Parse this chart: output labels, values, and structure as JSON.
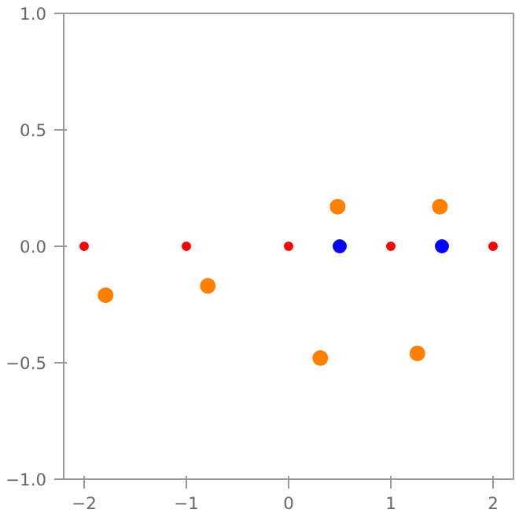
{
  "chart_data": {
    "type": "scatter",
    "marker": "circle",
    "grid": false,
    "xlim": [
      -2.2,
      2.2
    ],
    "ylim": [
      -1,
      1
    ],
    "xticks": [
      {
        "value": -2,
        "label": "−2"
      },
      {
        "value": -1,
        "label": "−1"
      },
      0,
      1,
      2
    ],
    "yticks": [
      {
        "value": -1,
        "label": "−1.0"
      },
      {
        "value": -0.5,
        "label": "−0.5"
      },
      {
        "value": 0,
        "label": "0.0"
      },
      0.5,
      {
        "value": 1,
        "label": "1.0"
      }
    ],
    "series": [
      {
        "color": "#ff0000",
        "x": [
          -2,
          -1,
          0,
          1,
          2
        ],
        "values": [
          0,
          0,
          0,
          0,
          0
        ]
      },
      {
        "color": "#0000ff",
        "x": [
          0.5,
          1.5
        ],
        "values": [
          0,
          0
        ]
      },
      {
        "color": "#ff8000",
        "x": [
          -1.79,
          -0.79,
          0.31,
          1.26,
          0.48,
          1.48
        ],
        "values": [
          -0.21,
          -0.17,
          -0.48,
          -0.46,
          0.17,
          0.17
        ]
      }
    ]
  }
}
